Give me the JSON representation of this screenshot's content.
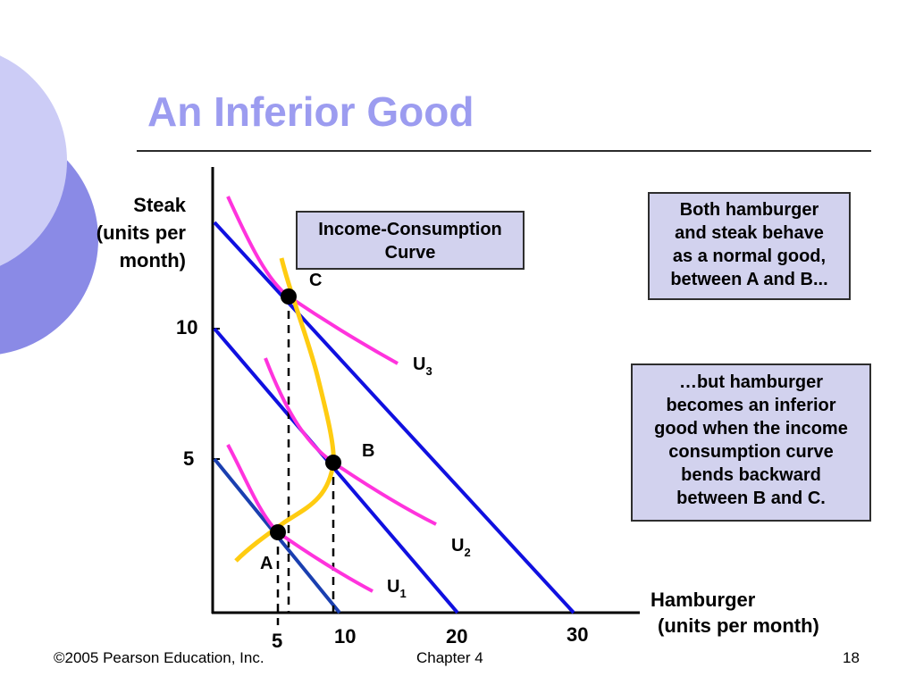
{
  "slide": {
    "title": "An Inferior Good"
  },
  "axes": {
    "y_label": [
      "Steak",
      "(units per",
      "month)"
    ],
    "x_label": [
      "Hamburger",
      "(units per month)"
    ],
    "y_ticks": [
      "10",
      "5"
    ],
    "x_ticks": [
      "5",
      "10",
      "20",
      "30"
    ]
  },
  "labels": {
    "icc_box": [
      "Income-Consumption",
      "Curve"
    ],
    "point_c": "C",
    "point_b": "B",
    "point_a": "A",
    "u3": {
      "main": "U",
      "sub": "3"
    },
    "u2": {
      "main": "U",
      "sub": "2"
    },
    "u1": {
      "main": "U",
      "sub": "1"
    }
  },
  "notes": {
    "note1_lines": [
      "Both hamburger",
      "and steak behave",
      "as a normal good,",
      "between A and B..."
    ],
    "note2_lines": [
      "…but hamburger",
      "becomes an inferior",
      "good when the income",
      "consumption curve",
      "bends backward",
      "between B and C."
    ]
  },
  "footer": {
    "copyright": "©2005 Pearson Education, Inc.",
    "chapter": "Chapter 4",
    "page": "18"
  },
  "colors": {
    "title": "#9c9cf0",
    "budget_line": "#1010e0",
    "indifference_curve": "#ff33dd",
    "icc_curve": "#ffcc11",
    "box_fill": "#d2d2ee",
    "deco_circle_back": "#8a8ae6",
    "deco_circle_front": "#ccccf6"
  }
}
